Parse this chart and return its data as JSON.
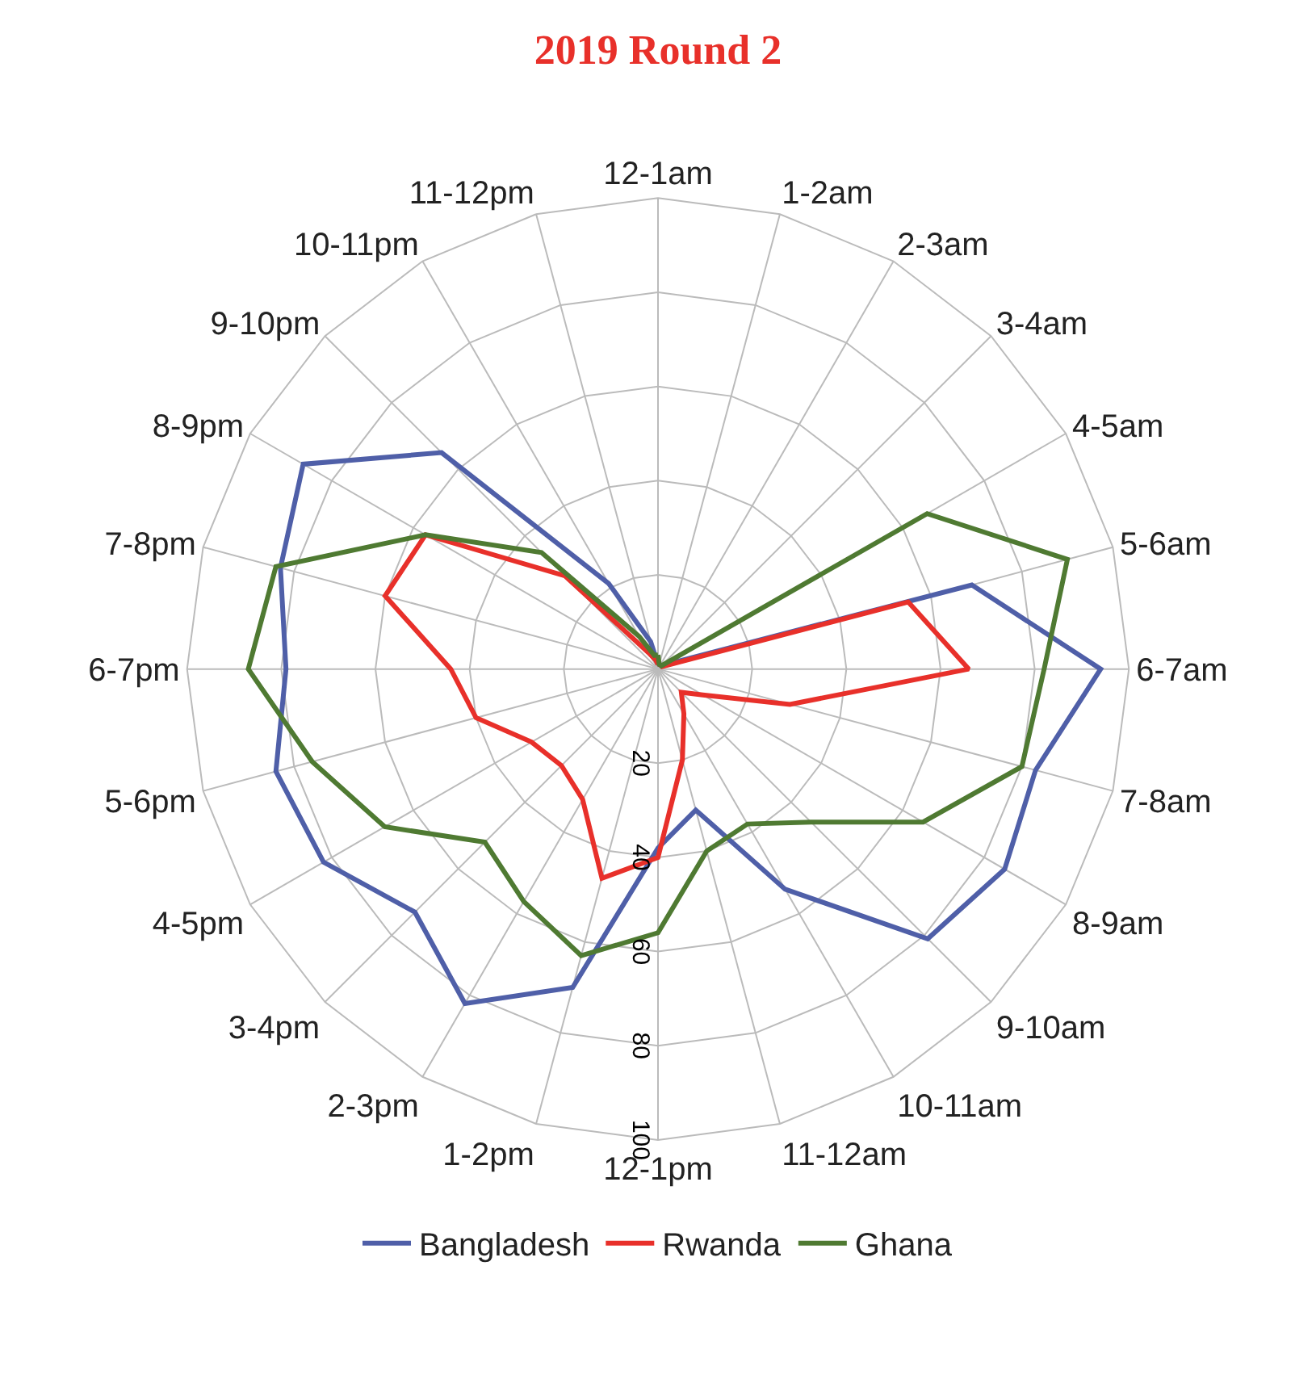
{
  "chart_data": {
    "type": "radar",
    "title": "2019 Round 2",
    "categories": [
      "12-1am",
      "1-2am",
      "2-3am",
      "3-4am",
      "4-5am",
      "5-6am",
      "6-7am",
      "7-8am",
      "8-9am",
      "9-10am",
      "10-11am",
      "11-12am",
      "12-1pm",
      "1-2pm",
      "2-3pm",
      "3-4pm",
      "4-5pm",
      "5-6pm",
      "6-7pm",
      "7-8pm",
      "8-9pm",
      "9-10pm",
      "10-11pm",
      "11-12pm"
    ],
    "series": [
      {
        "name": "Bangladesh",
        "color": "#4f5fa8",
        "values": [
          1,
          1,
          1,
          1,
          2,
          69,
          94,
          83,
          85,
          81,
          54,
          31,
          38,
          70,
          82,
          73,
          82,
          84,
          79,
          83,
          87,
          65,
          21,
          6
        ]
      },
      {
        "name": "Rwanda",
        "color": "#e8302a",
        "values": [
          1,
          1,
          1,
          1,
          1,
          55,
          66,
          29,
          11,
          7,
          11,
          20,
          40,
          46,
          32,
          29,
          31,
          40,
          44,
          60,
          57,
          28,
          4,
          2
        ]
      },
      {
        "name": "Ghana",
        "color": "#4f7a32",
        "values": [
          3,
          1,
          1,
          1,
          66,
          90,
          82,
          80,
          65,
          46,
          38,
          40,
          56,
          63,
          57,
          52,
          67,
          76,
          87,
          84,
          57,
          35,
          8,
          3
        ]
      }
    ],
    "ylim": [
      0,
      100
    ],
    "yticks": [
      20,
      40,
      60,
      80,
      100
    ],
    "grid": true,
    "legend": "bottom",
    "marker": "none",
    "line_style": "solid"
  }
}
